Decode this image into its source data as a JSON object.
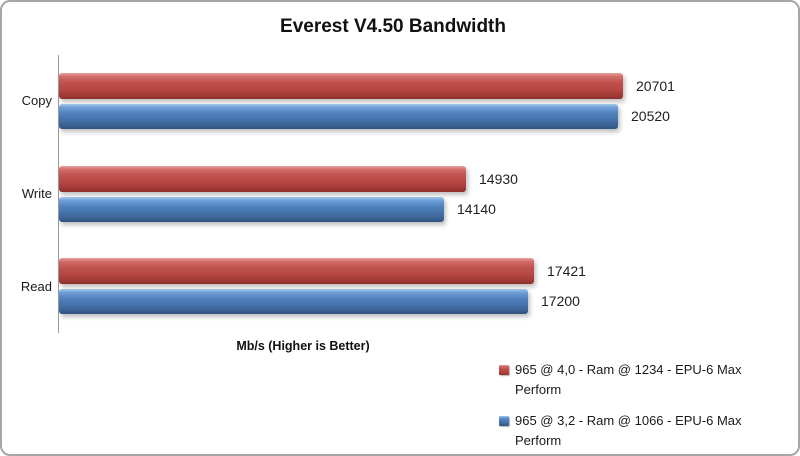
{
  "chart_data": {
    "type": "bar",
    "orientation": "horizontal",
    "title": "Everest V4.50 Bandwidth",
    "xlabel": "Mb/s (Higher is Better)",
    "categories": [
      "Copy",
      "Write",
      "Read"
    ],
    "series": [
      {
        "name": "965 @ 4,0 - Ram @ 1234 - EPU-6 Max Perform",
        "color": "#c0504d",
        "values": [
          20701,
          14930,
          17421
        ]
      },
      {
        "name": "965 @ 3,2 - Ram @ 1066 - EPU-6 Max Perform",
        "color": "#4f81bd",
        "values": [
          20520,
          14140,
          17200
        ]
      }
    ],
    "data_labels": true,
    "grid": false,
    "legend_position": "bottom-right",
    "axis_color": "#9a9a9a"
  }
}
